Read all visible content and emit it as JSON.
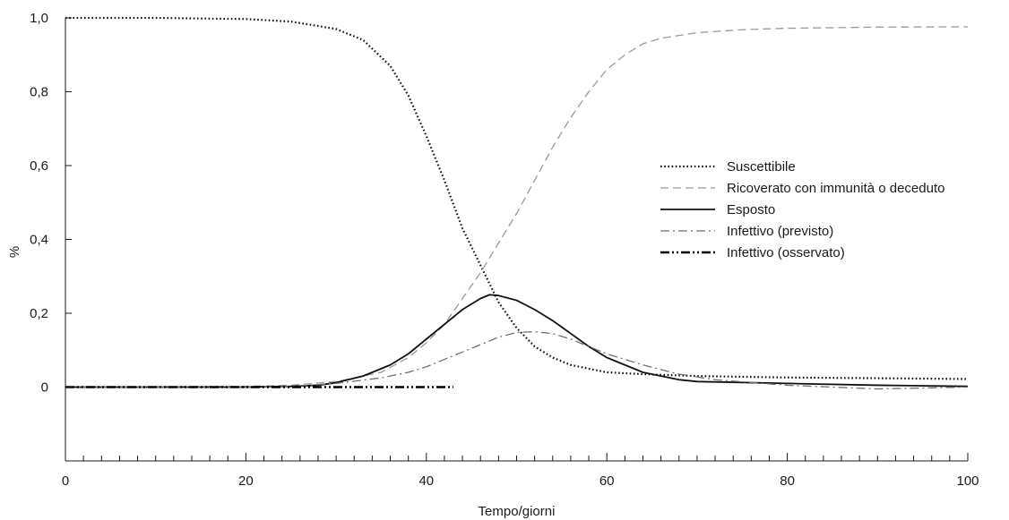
{
  "chart_data": {
    "type": "line",
    "xlabel": "Tempo/giorni",
    "ylabel": "%",
    "xlim": [
      0,
      100
    ],
    "ylim": [
      -0.2,
      1.0
    ],
    "x_ticks": [
      "0",
      "20",
      "40",
      "60",
      "80",
      "100"
    ],
    "y_ticks": [
      "0",
      "0,2",
      "0,4",
      "0,6",
      "0,8",
      "1,0"
    ],
    "grid": false,
    "legend_position": "right",
    "series": [
      {
        "name": "Suscettibile",
        "style": "dotted",
        "color": "#111111",
        "x": [
          0,
          10,
          20,
          25,
          30,
          33,
          36,
          38,
          40,
          42,
          44,
          46,
          48,
          50,
          52,
          54,
          56,
          58,
          60,
          64,
          70,
          80,
          90,
          100
        ],
        "y": [
          1.0,
          1.0,
          0.997,
          0.99,
          0.97,
          0.94,
          0.87,
          0.79,
          0.68,
          0.56,
          0.43,
          0.33,
          0.23,
          0.16,
          0.11,
          0.08,
          0.06,
          0.05,
          0.04,
          0.035,
          0.03,
          0.026,
          0.024,
          0.022
        ]
      },
      {
        "name": "Ricoverato con immunità o deceduto",
        "style": "dashed",
        "color": "#9a9a9a",
        "x": [
          0,
          20,
          25,
          30,
          35,
          38,
          40,
          42,
          44,
          46,
          48,
          50,
          52,
          54,
          56,
          58,
          60,
          62,
          64,
          66,
          70,
          75,
          80,
          90,
          100
        ],
        "y": [
          0.0,
          0.002,
          0.005,
          0.015,
          0.04,
          0.08,
          0.12,
          0.17,
          0.24,
          0.31,
          0.39,
          0.47,
          0.56,
          0.65,
          0.73,
          0.8,
          0.86,
          0.9,
          0.93,
          0.945,
          0.96,
          0.968,
          0.972,
          0.975,
          0.976
        ]
      },
      {
        "name": "Esposto",
        "style": "solid",
        "color": "#111111",
        "x": [
          0,
          20,
          25,
          28,
          30,
          33,
          36,
          38,
          40,
          42,
          44,
          46,
          47,
          48,
          50,
          52,
          54,
          56,
          58,
          60,
          64,
          68,
          70,
          80,
          90,
          100
        ],
        "y": [
          0.0,
          0.0,
          0.002,
          0.005,
          0.012,
          0.03,
          0.06,
          0.09,
          0.13,
          0.17,
          0.21,
          0.24,
          0.25,
          0.248,
          0.235,
          0.21,
          0.18,
          0.145,
          0.11,
          0.08,
          0.04,
          0.02,
          0.015,
          0.01,
          0.005,
          0.002
        ]
      },
      {
        "name": "Infettivo (previsto)",
        "style": "dashdot",
        "color": "#6e6e6e",
        "x": [
          0,
          20,
          25,
          30,
          35,
          38,
          40,
          42,
          44,
          46,
          48,
          50,
          52,
          54,
          56,
          58,
          60,
          64,
          68,
          72,
          80,
          90,
          100
        ],
        "y": [
          0.0,
          0.0,
          0.002,
          0.01,
          0.025,
          0.04,
          0.055,
          0.075,
          0.095,
          0.115,
          0.135,
          0.148,
          0.15,
          0.145,
          0.13,
          0.11,
          0.09,
          0.06,
          0.035,
          0.02,
          0.005,
          -0.005,
          0.0
        ]
      },
      {
        "name": "Infettivo (osservato)",
        "style": "dashdotdot",
        "color": "#000000",
        "x": [
          0,
          10,
          20,
          30,
          40,
          43
        ],
        "y": [
          0.0,
          0.0,
          0.0,
          0.0,
          0.0,
          0.0
        ]
      }
    ]
  }
}
